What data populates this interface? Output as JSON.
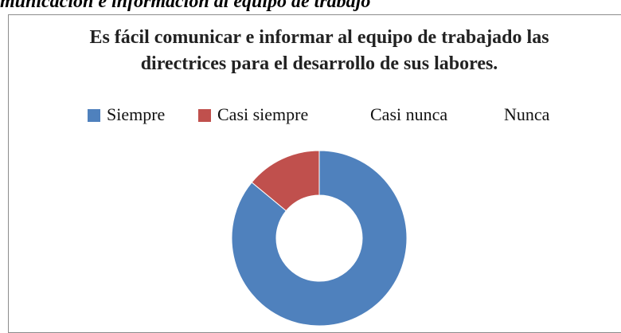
{
  "header": {
    "title": "municación e información al equipo de trabajo"
  },
  "chart_data": {
    "type": "doughnut",
    "title": "Es fácil comunicar e informar al equipo de trabajado las directrices para el desarrollo de sus labores.",
    "categories": [
      "Siempre",
      "Casi siempre",
      "Casi nunca",
      "Nunca"
    ],
    "values": [
      86,
      14,
      0,
      0
    ],
    "colors": [
      "#4f81bd",
      "#c0504d",
      null,
      null
    ],
    "legend": "top"
  }
}
